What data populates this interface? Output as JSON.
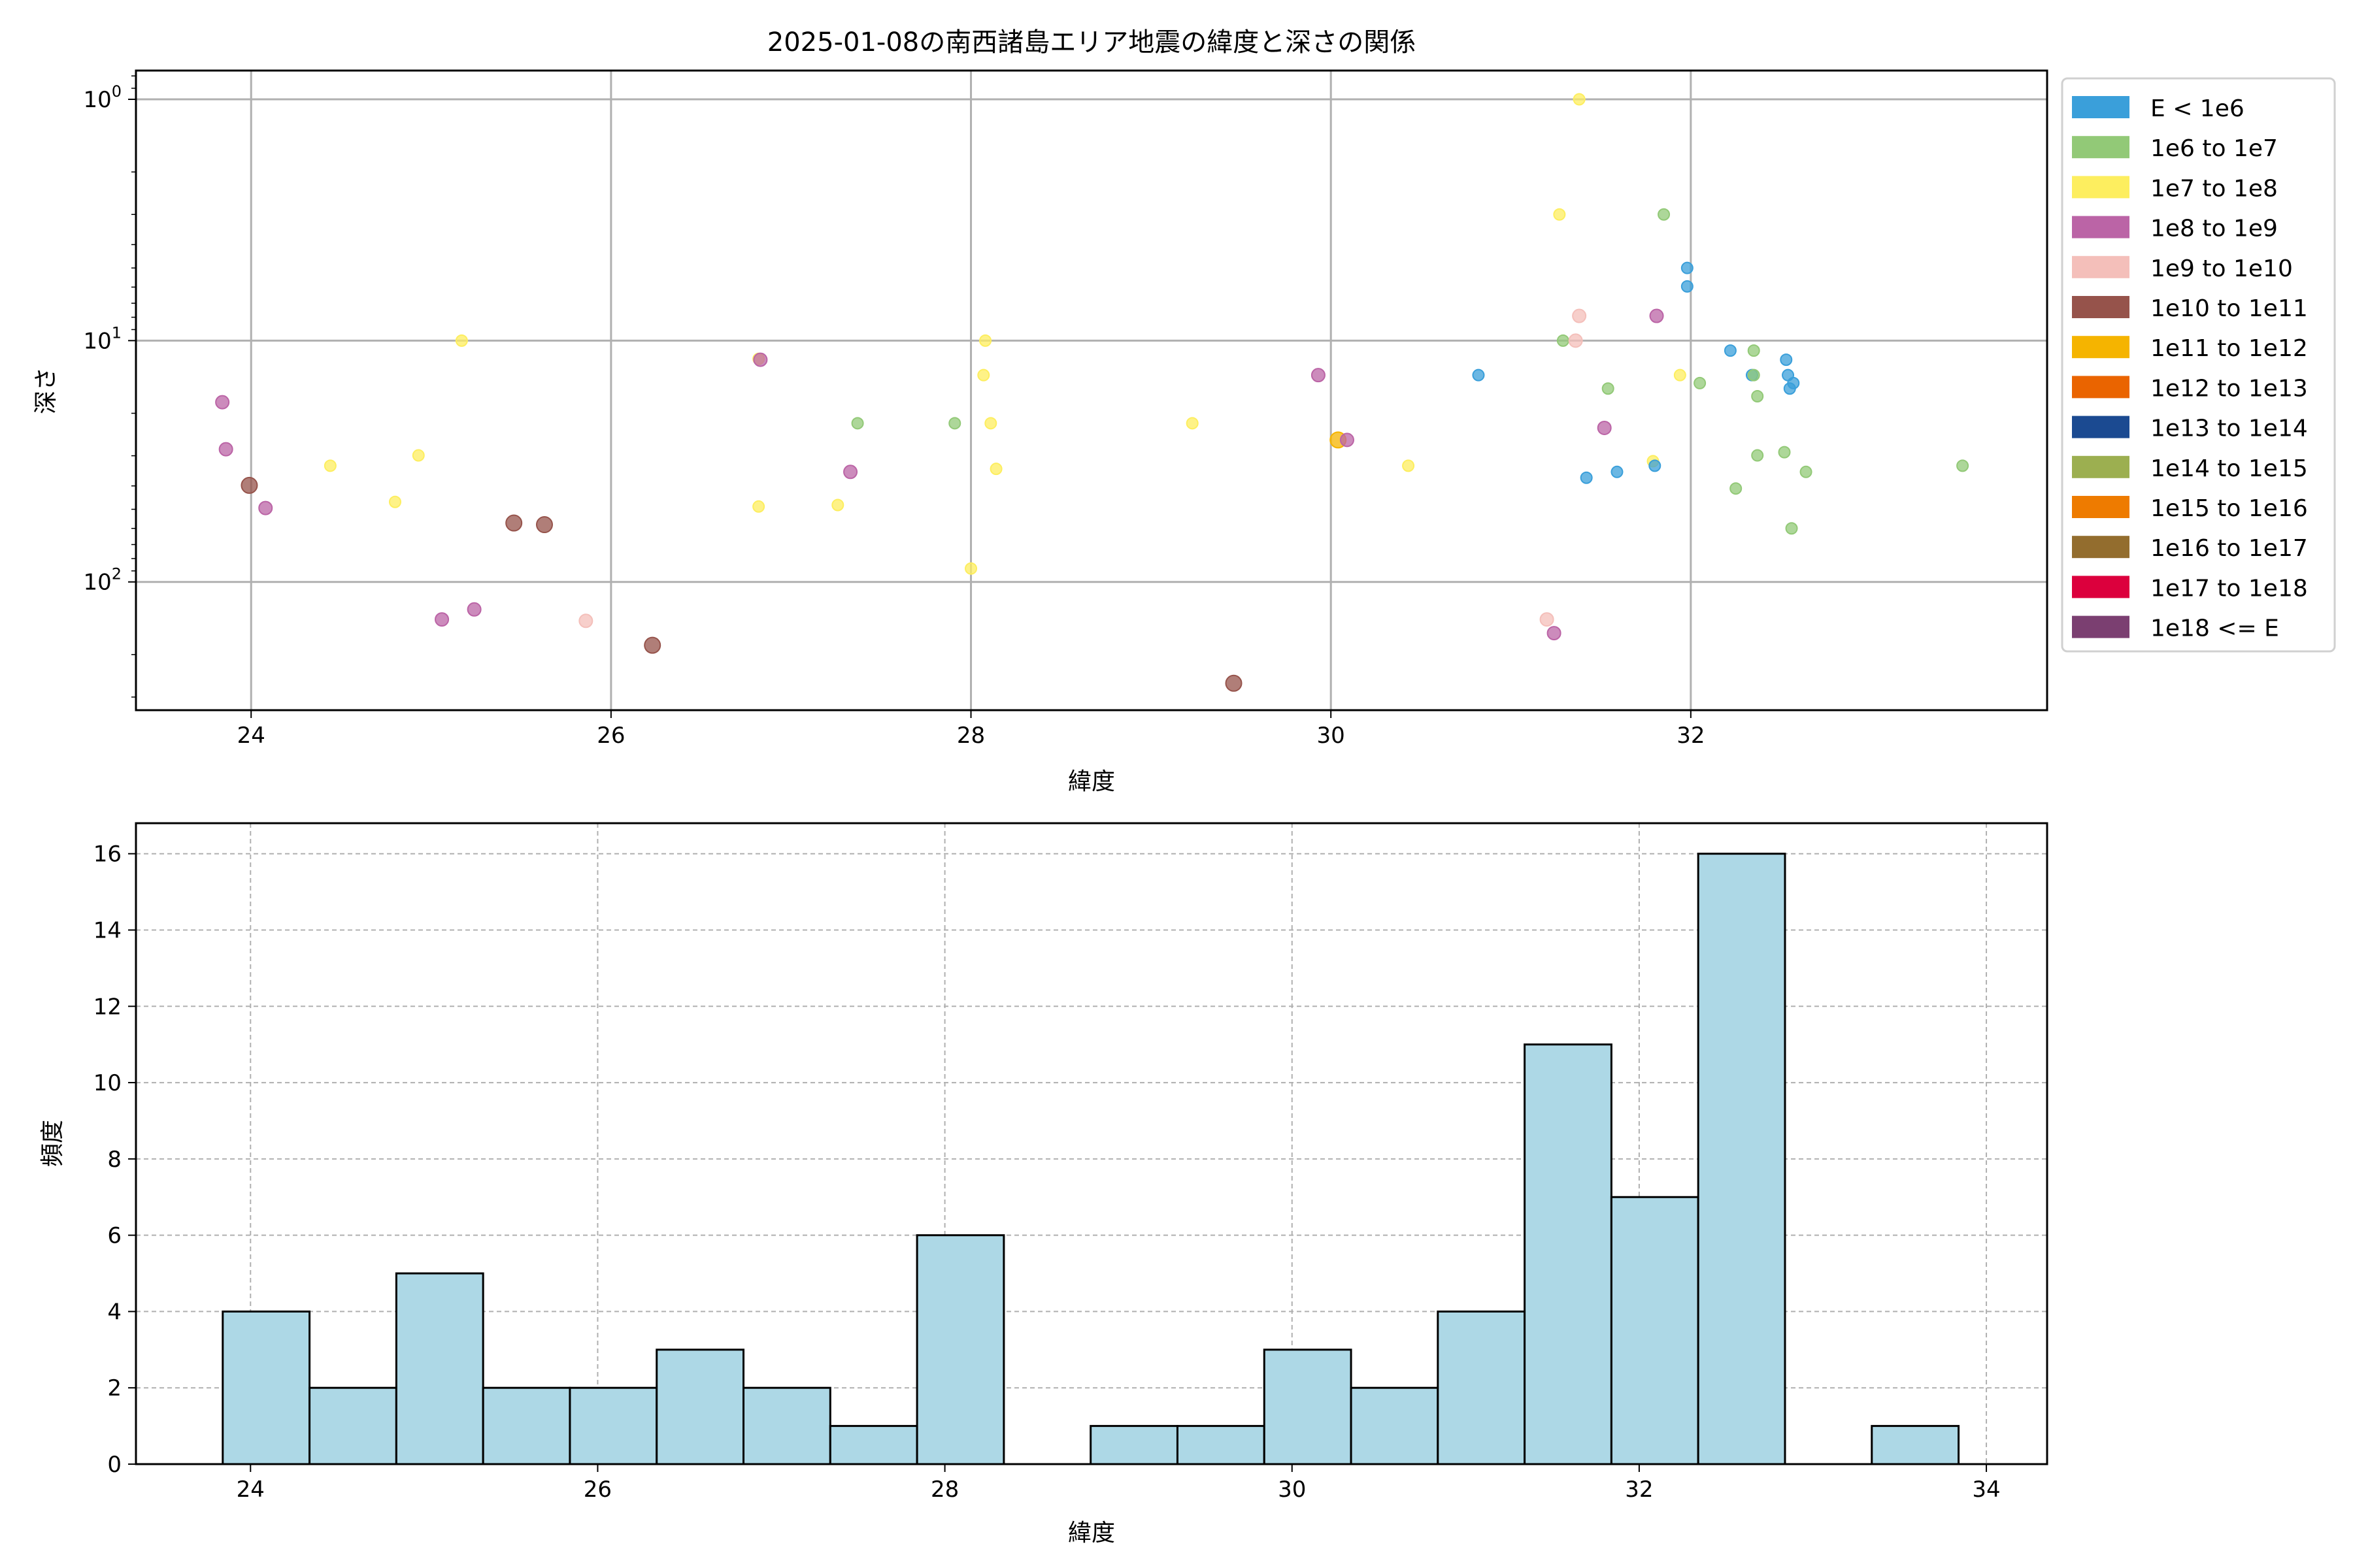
{
  "chart_data": [
    {
      "type": "scatter",
      "title": "2025-01-08の南西諸島エリア地震の緯度と深さの関係",
      "xlabel": "緯度",
      "ylabel": "深さ",
      "xlim": [
        23.36,
        33.98
      ],
      "ylim": [
        340,
        0.76
      ],
      "yscale": "log",
      "y_inverted": true,
      "grid": true,
      "xticks": [
        "24",
        "26",
        "28",
        "30",
        "32"
      ],
      "xtick_values": [
        24,
        26,
        28,
        30,
        32
      ],
      "yticks": [
        {
          "base": "10",
          "exp": "0"
        },
        {
          "base": "10",
          "exp": "1"
        },
        {
          "base": "10",
          "exp": "2"
        }
      ],
      "ytick_values": [
        1,
        10,
        100
      ],
      "legend_position": "outside-right",
      "legend": [
        {
          "label": "E < 1e6",
          "color": "#3a9fda"
        },
        {
          "label": "1e6 to 1e7",
          "color": "#92c977"
        },
        {
          "label": "1e7 to 1e8",
          "color": "#fdee5f"
        },
        {
          "label": "1e8 to 1e9",
          "color": "#bb64a6"
        },
        {
          "label": "1e9 to 1e10",
          "color": "#f4bfba"
        },
        {
          "label": "1e10 to 1e11",
          "color": "#96534b"
        },
        {
          "label": "1e11 to 1e12",
          "color": "#f5b400"
        },
        {
          "label": "1e12 to 1e13",
          "color": "#ea6400"
        },
        {
          "label": "1e13 to 1e14",
          "color": "#1b4a91"
        },
        {
          "label": "1e14 to 1e15",
          "color": "#9caf50"
        },
        {
          "label": "1e15 to 1e16",
          "color": "#ee7b00"
        },
        {
          "label": "1e16 to 1e17",
          "color": "#936d2e"
        },
        {
          "label": "1e17 to 1e18",
          "color": "#dc003d"
        },
        {
          "label": "1e18 <= E",
          "color": "#7b3f71"
        }
      ],
      "points_fields": [
        "latitude",
        "depth",
        "energy_class_index"
      ],
      "points": [
        [
          23.84,
          18.0,
          3
        ],
        [
          23.86,
          28.2,
          3
        ],
        [
          23.99,
          39.8,
          5
        ],
        [
          24.08,
          49.4,
          3
        ],
        [
          24.44,
          33,
          2
        ],
        [
          24.8,
          46.6,
          2
        ],
        [
          24.93,
          29.9,
          2
        ],
        [
          25.17,
          10,
          2
        ],
        [
          25.06,
          143,
          3
        ],
        [
          25.24,
          130,
          3
        ],
        [
          25.46,
          57,
          5
        ],
        [
          25.63,
          57.9,
          5
        ],
        [
          25.86,
          145,
          4
        ],
        [
          26.23,
          183,
          5
        ],
        [
          26.82,
          11.9,
          2
        ],
        [
          26.83,
          12,
          3
        ],
        [
          26.82,
          48.7,
          2
        ],
        [
          27.26,
          48,
          2
        ],
        [
          27.33,
          35,
          3
        ],
        [
          27.37,
          22,
          1
        ],
        [
          27.91,
          22,
          1
        ],
        [
          28.0,
          88,
          2
        ],
        [
          28.08,
          10,
          2
        ],
        [
          28.07,
          13.9,
          2
        ],
        [
          28.11,
          22,
          2
        ],
        [
          28.14,
          34,
          2
        ],
        [
          29.23,
          22,
          2
        ],
        [
          29.46,
          263,
          5
        ],
        [
          29.93,
          13.9,
          3
        ],
        [
          30.04,
          25.8,
          6
        ],
        [
          30.09,
          25.8,
          3
        ],
        [
          30.43,
          33,
          2
        ],
        [
          30.82,
          13.9,
          0
        ],
        [
          31.27,
          3.0,
          2
        ],
        [
          31.38,
          1.0,
          2
        ],
        [
          31.85,
          3.0,
          1
        ],
        [
          31.98,
          5.0,
          0
        ],
        [
          31.98,
          5.96,
          0
        ],
        [
          31.38,
          7.9,
          4
        ],
        [
          31.81,
          7.9,
          3
        ],
        [
          31.29,
          10,
          1
        ],
        [
          31.36,
          10,
          4
        ],
        [
          31.54,
          15.8,
          1
        ],
        [
          31.94,
          13.9,
          2
        ],
        [
          32.05,
          15,
          1
        ],
        [
          32.22,
          11,
          0
        ],
        [
          32.35,
          11,
          1
        ],
        [
          32.34,
          13.9,
          0
        ],
        [
          32.35,
          13.9,
          1
        ],
        [
          32.37,
          17,
          1
        ],
        [
          32.53,
          12,
          0
        ],
        [
          32.54,
          13.9,
          0
        ],
        [
          32.55,
          15.8,
          0
        ],
        [
          32.57,
          15,
          0
        ],
        [
          31.52,
          23,
          3
        ],
        [
          31.79,
          31.6,
          2
        ],
        [
          31.8,
          33,
          0
        ],
        [
          31.42,
          37,
          0
        ],
        [
          31.59,
          35,
          0
        ],
        [
          32.37,
          29.9,
          1
        ],
        [
          32.52,
          29,
          1
        ],
        [
          32.64,
          35,
          1
        ],
        [
          32.25,
          41,
          1
        ],
        [
          32.56,
          60,
          1
        ],
        [
          33.51,
          33,
          1
        ],
        [
          31.2,
          143,
          4
        ],
        [
          31.24,
          163,
          3
        ]
      ]
    },
    {
      "type": "bar",
      "subtype": "histogram",
      "xlabel": "緯度",
      "ylabel": "頻度",
      "xlim": [
        23.34,
        34.35
      ],
      "ylim": [
        0,
        16.8
      ],
      "grid": true,
      "bar_color": "#add8e6",
      "edge_color": "#000000",
      "bin_start": 23.84,
      "bin_width": 0.5,
      "values": [
        4,
        2,
        5,
        2,
        2,
        3,
        2,
        1,
        6,
        0,
        1,
        1,
        3,
        2,
        4,
        11,
        7,
        16,
        0,
        1
      ],
      "xticks": [
        "24",
        "26",
        "28",
        "30",
        "32",
        "34"
      ],
      "xtick_values": [
        24,
        26,
        28,
        30,
        32,
        34
      ],
      "yticks": [
        "0",
        "2",
        "4",
        "6",
        "8",
        "10",
        "12",
        "14",
        "16"
      ],
      "ytick_values": [
        0,
        2,
        4,
        6,
        8,
        10,
        12,
        14,
        16
      ]
    }
  ]
}
